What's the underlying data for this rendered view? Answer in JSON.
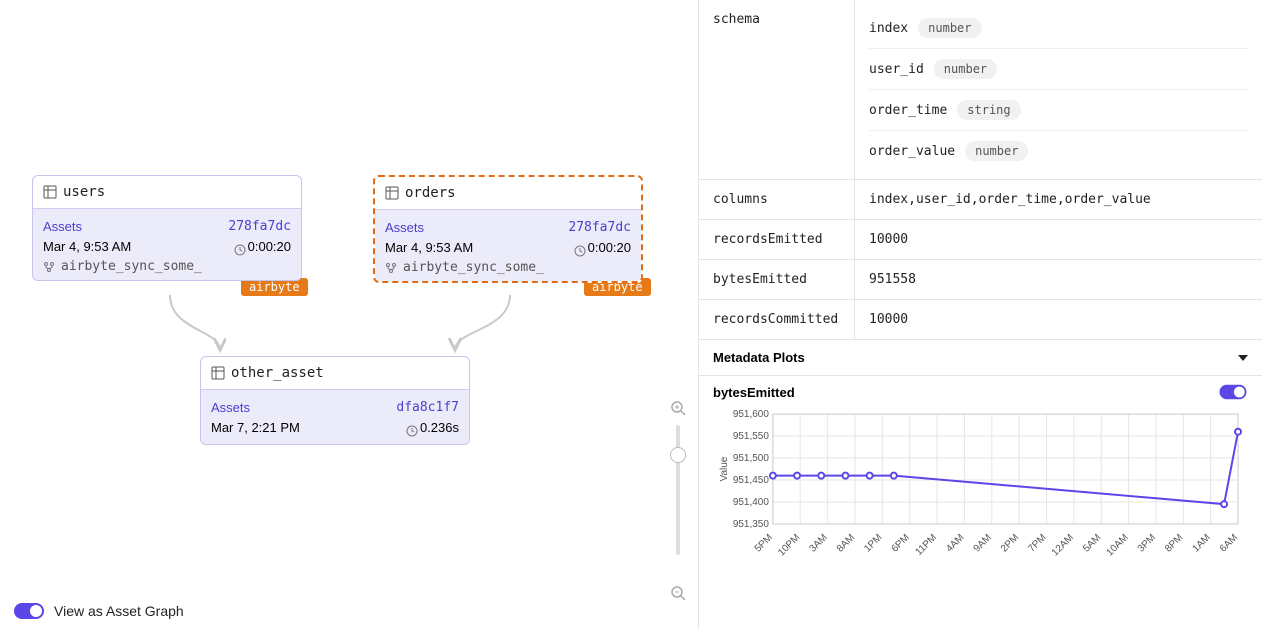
{
  "palette": {
    "accent": "#5b46ea",
    "node_border": "#c9c3ef",
    "node_body": "#ecebf9",
    "selected_border": "#e36b16",
    "badge_bg": "#e57a17",
    "grid": "#e5e5e5",
    "divider": "#e4e4e4"
  },
  "graph": {
    "nodes": {
      "users": {
        "title": "users",
        "assets_label": "Assets",
        "run_id": "278fa7dc",
        "timestamp": "Mar 4, 9:53 AM",
        "duration": "0:00:20",
        "sync_source": "airbyte_sync_some_",
        "badge": "airbyte"
      },
      "orders": {
        "title": "orders",
        "assets_label": "Assets",
        "run_id": "278fa7dc",
        "timestamp": "Mar 4, 9:53 AM",
        "duration": "0:00:20",
        "sync_source": "airbyte_sync_some_",
        "badge": "airbyte"
      },
      "other_asset": {
        "title": "other_asset",
        "assets_label": "Assets",
        "run_id": "dfa8c1f7",
        "timestamp": "Mar 7, 2:21 PM",
        "duration": "0.236s"
      }
    },
    "view_toggle_label": "View as Asset Graph"
  },
  "metadata": {
    "schema_label": "schema",
    "schema": [
      {
        "name": "index",
        "type": "number"
      },
      {
        "name": "user_id",
        "type": "number"
      },
      {
        "name": "order_time",
        "type": "string"
      },
      {
        "name": "order_value",
        "type": "number"
      }
    ],
    "rows": {
      "columns_label": "columns",
      "columns_value": "index,user_id,order_time,order_value",
      "recordsEmitted_label": "recordsEmitted",
      "recordsEmitted_value": "10000",
      "bytesEmitted_label": "bytesEmitted",
      "bytesEmitted_value": "951558",
      "recordsCommitted_label": "recordsCommitted",
      "recordsCommitted_value": "10000"
    },
    "plots_section_label": "Metadata Plots",
    "plot_title": "bytesEmitted"
  },
  "chart": {
    "type": "line",
    "y_label": "Value",
    "x_label": "",
    "ylim": [
      951350,
      951600
    ],
    "ytick_step": 50,
    "yticks": [
      951350,
      951400,
      951450,
      951500,
      951550,
      951600
    ],
    "x_labels": [
      "5PM",
      "10PM",
      "3AM",
      "8AM",
      "1PM",
      "6PM",
      "11PM",
      "4AM",
      "9AM",
      "2PM",
      "7PM",
      "12AM",
      "5AM",
      "10AM",
      "3PM",
      "8PM",
      "1AM",
      "6AM"
    ],
    "dense_points": [
      951460,
      951460,
      951460,
      951460,
      951460,
      951460
    ],
    "tail_points": [
      951395,
      951560
    ],
    "line_color": "#5b46ea",
    "marker_radius": 3,
    "grid_color": "#e5e5e5",
    "background_color": "#ffffff",
    "label_fontsize": 10
  }
}
